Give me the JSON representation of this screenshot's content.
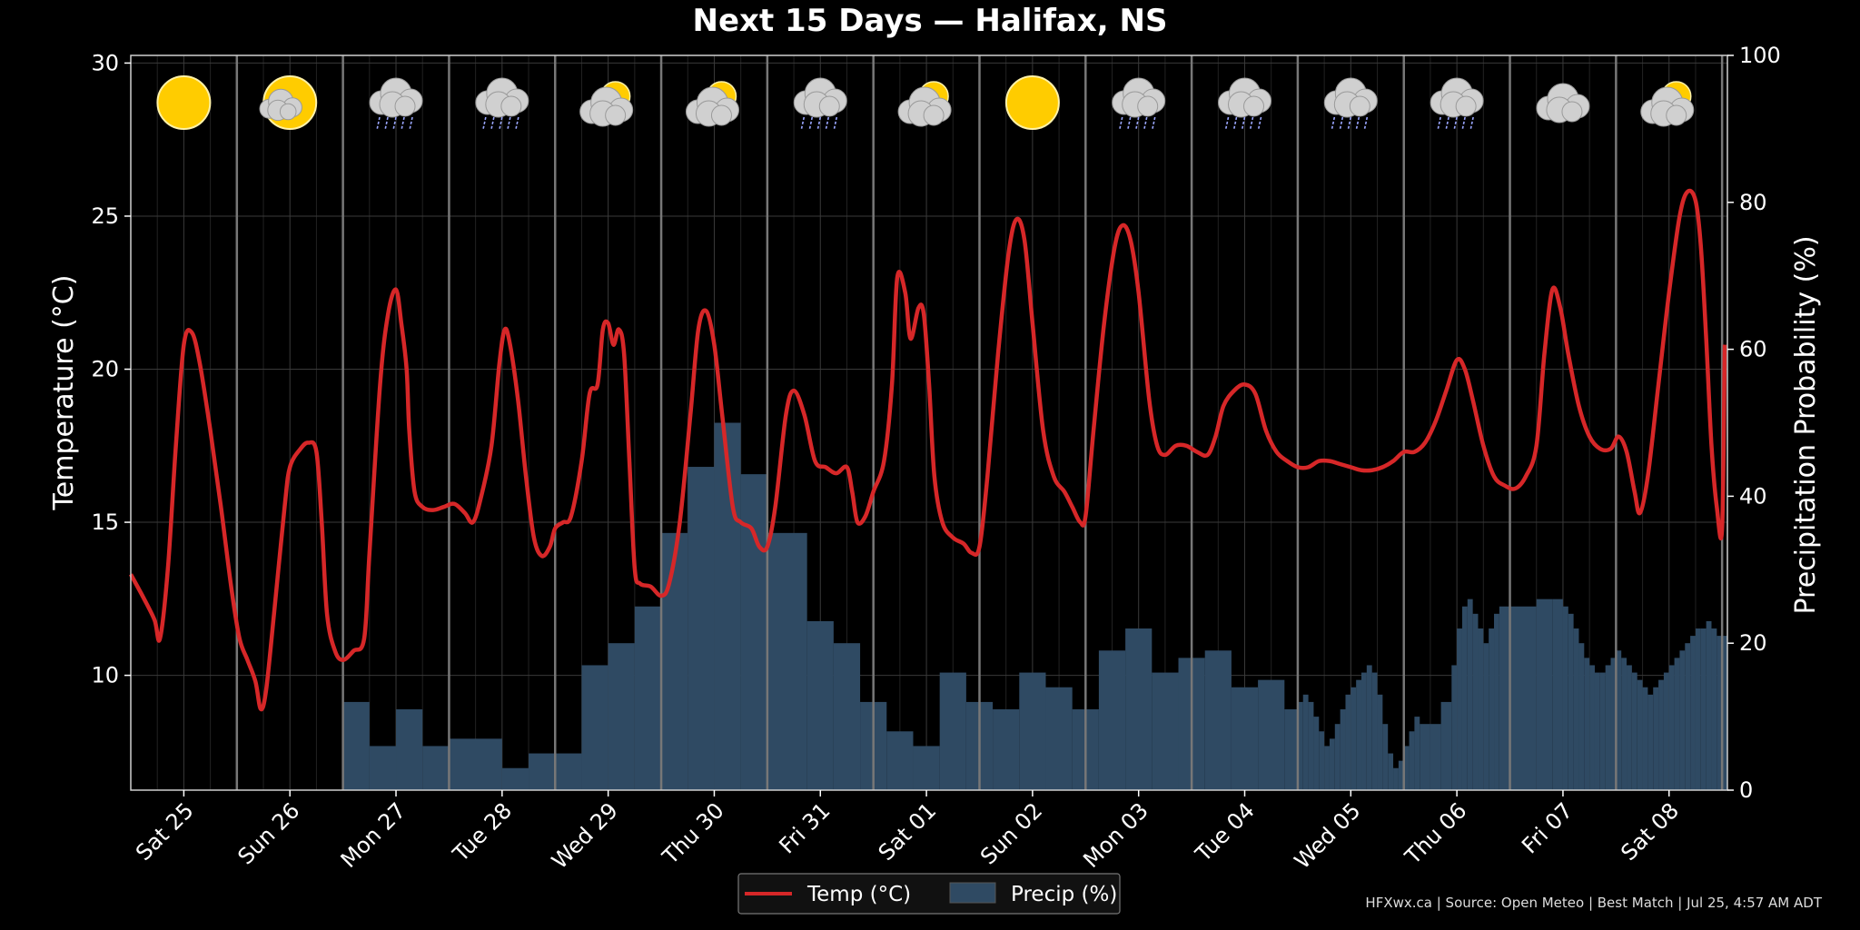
{
  "chart_data": {
    "type": "line",
    "title": "Next 15 Days — Halifax, NS",
    "ylabel_left": "Temperature (°C)",
    "ylabel_right": "Precipitation Probability (%)",
    "ylim_left": [
      6.25,
      30.25
    ],
    "ylim_right": [
      0,
      100
    ],
    "yticks_left": [
      "10",
      "15",
      "20",
      "25",
      "30"
    ],
    "yticks_right": [
      "0",
      "20",
      "40",
      "60",
      "80",
      "100"
    ],
    "day_labels": [
      "Sat 25",
      "Sun 26",
      "Mon 27",
      "Tue 28",
      "Wed 29",
      "Thu 30",
      "Fri 31",
      "Sat 01",
      "Sun 02",
      "Mon 03",
      "Tue 04",
      "Wed 05",
      "Thu 06",
      "Fri 07",
      "Sat 08"
    ],
    "day_icons": [
      "sun-icon",
      "sun-icon",
      "rain-cloud-icon",
      "rain-cloud-icon",
      "partly-cloudy-icon",
      "partly-cloudy-icon",
      "rain-cloud-icon",
      "partly-cloudy-icon",
      "sun-icon",
      "rain-cloud-icon",
      "rain-cloud-icon",
      "rain-cloud-icon",
      "rain-cloud-icon",
      "cloud-icon",
      "partly-cloudy-icon"
    ],
    "grid": true,
    "legend_position": "bottom-center",
    "series": [
      {
        "name": "Temp (°C)",
        "type": "line",
        "color": "#d62728",
        "x_unit": "days from start",
        "points": [
          [
            0,
            13.3
          ],
          [
            0.25,
            12.5
          ],
          [
            0.45,
            11.8
          ],
          [
            0.55,
            11.2
          ],
          [
            0.7,
            13.5
          ],
          [
            0.85,
            17.5
          ],
          [
            1.0,
            20.8
          ],
          [
            1.15,
            21.2
          ],
          [
            1.3,
            20.2
          ],
          [
            1.5,
            18.0
          ],
          [
            1.7,
            15.5
          ],
          [
            1.9,
            12.8
          ],
          [
            2.05,
            11.2
          ],
          [
            2.2,
            10.5
          ],
          [
            2.35,
            9.8
          ],
          [
            2.45,
            8.9
          ],
          [
            2.55,
            9.5
          ],
          [
            2.7,
            12.0
          ],
          [
            2.9,
            15.5
          ],
          [
            3.0,
            16.8
          ],
          [
            3.2,
            17.4
          ],
          [
            3.35,
            17.6
          ],
          [
            3.5,
            17.3
          ],
          [
            3.6,
            15.0
          ],
          [
            3.7,
            12.0
          ],
          [
            3.85,
            10.8
          ],
          [
            4.0,
            10.5
          ],
          [
            4.2,
            10.8
          ],
          [
            4.4,
            11.2
          ],
          [
            4.5,
            14.0
          ],
          [
            4.7,
            19.5
          ],
          [
            4.85,
            21.8
          ],
          [
            5.0,
            22.6
          ],
          [
            5.1,
            21.5
          ],
          [
            5.2,
            20.0
          ],
          [
            5.25,
            18.0
          ],
          [
            5.35,
            16.0
          ],
          [
            5.5,
            15.5
          ],
          [
            5.7,
            15.4
          ],
          [
            5.9,
            15.5
          ],
          [
            6.1,
            15.6
          ],
          [
            6.3,
            15.3
          ],
          [
            6.45,
            15.0
          ],
          [
            6.6,
            15.8
          ],
          [
            6.8,
            17.5
          ],
          [
            6.95,
            20.2
          ],
          [
            7.05,
            21.3
          ],
          [
            7.15,
            20.8
          ],
          [
            7.3,
            19.0
          ],
          [
            7.45,
            16.5
          ],
          [
            7.6,
            14.5
          ],
          [
            7.75,
            13.9
          ],
          [
            7.9,
            14.2
          ],
          [
            8.0,
            14.8
          ],
          [
            8.15,
            15.0
          ],
          [
            8.3,
            15.2
          ],
          [
            8.5,
            17.0
          ],
          [
            8.65,
            19.2
          ],
          [
            8.8,
            19.5
          ],
          [
            8.9,
            21.3
          ],
          [
            9.0,
            21.5
          ],
          [
            9.1,
            20.8
          ],
          [
            9.2,
            21.3
          ],
          [
            9.3,
            20.5
          ],
          [
            9.4,
            17.0
          ],
          [
            9.5,
            13.5
          ],
          [
            9.6,
            13.0
          ],
          [
            9.8,
            12.9
          ],
          [
            10.0,
            12.6
          ],
          [
            10.15,
            13.0
          ],
          [
            10.35,
            15.0
          ],
          [
            10.55,
            18.5
          ],
          [
            10.7,
            21.3
          ],
          [
            10.85,
            21.9
          ],
          [
            11.0,
            20.8
          ],
          [
            11.15,
            18.5
          ],
          [
            11.35,
            15.5
          ],
          [
            11.5,
            15.0
          ],
          [
            11.7,
            14.8
          ],
          [
            11.85,
            14.2
          ],
          [
            12.0,
            14.2
          ],
          [
            12.15,
            15.5
          ],
          [
            12.35,
            18.5
          ],
          [
            12.5,
            19.3
          ],
          [
            12.7,
            18.5
          ],
          [
            12.9,
            17.0
          ],
          [
            13.1,
            16.8
          ],
          [
            13.3,
            16.6
          ],
          [
            13.5,
            16.8
          ],
          [
            13.6,
            16.0
          ],
          [
            13.7,
            15.0
          ],
          [
            13.85,
            15.2
          ],
          [
            14.0,
            16.0
          ],
          [
            14.2,
            17.0
          ],
          [
            14.35,
            19.5
          ],
          [
            14.45,
            23.0
          ],
          [
            14.6,
            22.5
          ],
          [
            14.7,
            21.0
          ],
          [
            14.85,
            22.0
          ],
          [
            14.95,
            21.8
          ],
          [
            15.05,
            19.5
          ],
          [
            15.15,
            16.5
          ],
          [
            15.3,
            15.0
          ],
          [
            15.5,
            14.5
          ],
          [
            15.7,
            14.3
          ],
          [
            15.85,
            14.0
          ],
          [
            16.0,
            14.2
          ],
          [
            16.15,
            16.5
          ],
          [
            16.35,
            20.5
          ],
          [
            16.55,
            23.8
          ],
          [
            16.7,
            24.9
          ],
          [
            16.85,
            24.2
          ],
          [
            17.0,
            21.5
          ],
          [
            17.2,
            18.0
          ],
          [
            17.4,
            16.5
          ],
          [
            17.6,
            16.0
          ],
          [
            17.75,
            15.5
          ],
          [
            17.9,
            15.0
          ],
          [
            18.0,
            15.2
          ],
          [
            18.15,
            18.0
          ],
          [
            18.35,
            21.5
          ],
          [
            18.55,
            24.0
          ],
          [
            18.7,
            24.7
          ],
          [
            18.85,
            24.2
          ],
          [
            19.0,
            22.5
          ],
          [
            19.2,
            19.0
          ],
          [
            19.35,
            17.5
          ],
          [
            19.5,
            17.2
          ],
          [
            19.7,
            17.5
          ],
          [
            19.9,
            17.5
          ],
          [
            20.1,
            17.3
          ],
          [
            20.3,
            17.2
          ],
          [
            20.45,
            17.8
          ],
          [
            20.6,
            18.8
          ],
          [
            20.8,
            19.3
          ],
          [
            21.0,
            19.5
          ],
          [
            21.2,
            19.2
          ],
          [
            21.4,
            18.0
          ],
          [
            21.6,
            17.3
          ],
          [
            21.8,
            17.0
          ],
          [
            22.0,
            16.8
          ],
          [
            22.2,
            16.8
          ],
          [
            22.4,
            17.0
          ],
          [
            22.6,
            17.0
          ],
          [
            22.8,
            16.9
          ],
          [
            23.0,
            16.8
          ],
          [
            23.2,
            16.7
          ],
          [
            23.4,
            16.7
          ],
          [
            23.6,
            16.8
          ],
          [
            23.8,
            17.0
          ],
          [
            24.0,
            17.3
          ],
          [
            24.2,
            17.3
          ],
          [
            24.4,
            17.6
          ],
          [
            24.6,
            18.3
          ],
          [
            24.8,
            19.3
          ],
          [
            25.0,
            20.3
          ],
          [
            25.15,
            20.0
          ],
          [
            25.3,
            19.0
          ],
          [
            25.5,
            17.5
          ],
          [
            25.7,
            16.5
          ],
          [
            25.9,
            16.2
          ],
          [
            26.1,
            16.1
          ],
          [
            26.3,
            16.5
          ],
          [
            26.5,
            17.5
          ],
          [
            26.65,
            20.5
          ],
          [
            26.8,
            22.6
          ],
          [
            26.95,
            22.0
          ],
          [
            27.1,
            20.5
          ],
          [
            27.3,
            18.8
          ],
          [
            27.5,
            17.8
          ],
          [
            27.7,
            17.4
          ],
          [
            27.9,
            17.4
          ],
          [
            28.05,
            17.8
          ],
          [
            28.2,
            17.3
          ],
          [
            28.35,
            16.0
          ],
          [
            28.45,
            15.3
          ],
          [
            28.6,
            16.5
          ],
          [
            28.8,
            19.5
          ],
          [
            29.0,
            22.5
          ],
          [
            29.2,
            25.0
          ],
          [
            29.35,
            25.8
          ],
          [
            29.5,
            25.5
          ],
          [
            29.6,
            24.0
          ],
          [
            29.7,
            21.0
          ],
          [
            29.8,
            17.5
          ],
          [
            29.9,
            15.5
          ],
          [
            30.0,
            14.8
          ],
          [
            30.05,
            20.8
          ]
        ]
      },
      {
        "name": "Precip (%)",
        "type": "area",
        "color": "#2f4a63",
        "x_unit": "days from start",
        "steps": [
          [
            4,
            12
          ],
          [
            4.5,
            6
          ],
          [
            5,
            11
          ],
          [
            5.5,
            6
          ],
          [
            6,
            7
          ],
          [
            7,
            3
          ],
          [
            7.5,
            5
          ],
          [
            8.5,
            17
          ],
          [
            9,
            20
          ],
          [
            9.5,
            25
          ],
          [
            10,
            35
          ],
          [
            10.5,
            44
          ],
          [
            11,
            50
          ],
          [
            11.5,
            43
          ],
          [
            12,
            35
          ],
          [
            12.75,
            23
          ],
          [
            13.25,
            20
          ],
          [
            13.75,
            12
          ],
          [
            14.25,
            8
          ],
          [
            14.75,
            6
          ],
          [
            15.25,
            16
          ],
          [
            15.75,
            12
          ],
          [
            16.25,
            11
          ],
          [
            16.75,
            16
          ],
          [
            17.25,
            14
          ],
          [
            17.75,
            11
          ],
          [
            18.25,
            19
          ],
          [
            18.75,
            22
          ],
          [
            19.25,
            16
          ],
          [
            19.75,
            18
          ],
          [
            20.25,
            19
          ],
          [
            20.75,
            14
          ],
          [
            21.25,
            15
          ],
          [
            21.75,
            11
          ],
          [
            22.0,
            12
          ],
          [
            22.1,
            13
          ],
          [
            22.2,
            12
          ],
          [
            22.3,
            10
          ],
          [
            22.4,
            8
          ],
          [
            22.5,
            6
          ],
          [
            22.6,
            7
          ],
          [
            22.7,
            9
          ],
          [
            22.8,
            11
          ],
          [
            22.9,
            13
          ],
          [
            23.0,
            14
          ],
          [
            23.1,
            15
          ],
          [
            23.2,
            16
          ],
          [
            23.3,
            17
          ],
          [
            23.4,
            16
          ],
          [
            23.5,
            13
          ],
          [
            23.6,
            9
          ],
          [
            23.7,
            5
          ],
          [
            23.8,
            3
          ],
          [
            23.9,
            4
          ],
          [
            24.0,
            6
          ],
          [
            24.1,
            8
          ],
          [
            24.2,
            10
          ],
          [
            24.3,
            9
          ],
          [
            24.5,
            9
          ],
          [
            24.7,
            12
          ],
          [
            24.9,
            17
          ],
          [
            25.0,
            22
          ],
          [
            25.1,
            25
          ],
          [
            25.2,
            26
          ],
          [
            25.3,
            24
          ],
          [
            25.4,
            22
          ],
          [
            25.5,
            20
          ],
          [
            25.6,
            22
          ],
          [
            25.7,
            24
          ],
          [
            25.8,
            25
          ],
          [
            26.0,
            25
          ],
          [
            26.5,
            26
          ],
          [
            26.8,
            26
          ],
          [
            27.0,
            25
          ],
          [
            27.1,
            24
          ],
          [
            27.2,
            22
          ],
          [
            27.3,
            20
          ],
          [
            27.4,
            18
          ],
          [
            27.5,
            17
          ],
          [
            27.6,
            16
          ],
          [
            27.7,
            16
          ],
          [
            27.8,
            17
          ],
          [
            27.9,
            18
          ],
          [
            28.0,
            19
          ],
          [
            28.1,
            18
          ],
          [
            28.2,
            17
          ],
          [
            28.3,
            16
          ],
          [
            28.4,
            15
          ],
          [
            28.5,
            14
          ],
          [
            28.6,
            13
          ],
          [
            28.7,
            14
          ],
          [
            28.8,
            15
          ],
          [
            28.9,
            16
          ],
          [
            29.0,
            17
          ],
          [
            29.1,
            18
          ],
          [
            29.2,
            19
          ],
          [
            29.3,
            20
          ],
          [
            29.4,
            21
          ],
          [
            29.5,
            22
          ],
          [
            29.6,
            22
          ],
          [
            29.7,
            23
          ],
          [
            29.8,
            22
          ],
          [
            29.9,
            21
          ],
          [
            30.0,
            21
          ]
        ]
      }
    ]
  },
  "legend": {
    "temp_label": "Temp (°C)",
    "precip_label": "Precip (%)"
  },
  "footer": "HFXwx.ca | Source: Open Meteo | Best Match | Jul 25, 4:57 AM ADT"
}
